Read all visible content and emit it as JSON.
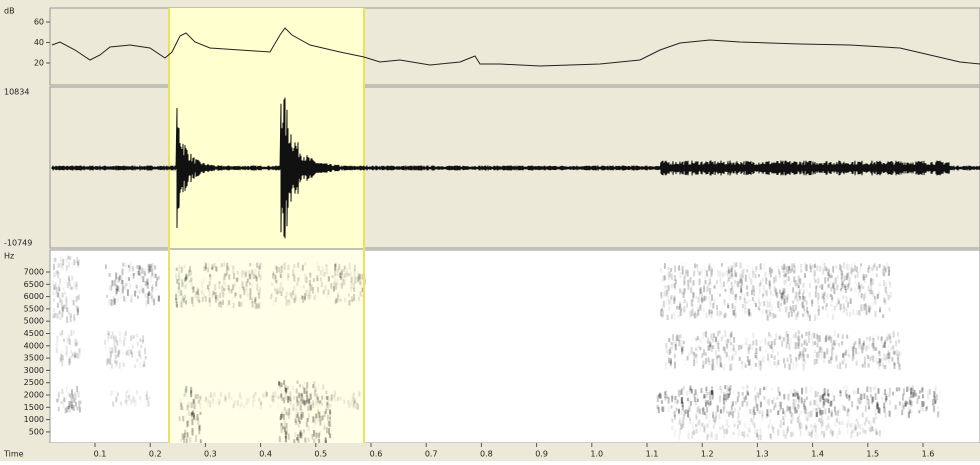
{
  "intensity_panel": {
    "unit": "dB",
    "ticks": [
      "60",
      "40",
      "20"
    ]
  },
  "waveform_panel": {
    "max": "10834",
    "min": "-10749"
  },
  "spectrogram_panel": {
    "unit": "Hz",
    "ticks": [
      "7000",
      "6500",
      "6000",
      "5500",
      "5000",
      "4500",
      "4000",
      "3500",
      "3000",
      "2500",
      "2000",
      "1500",
      "1000",
      "500"
    ]
  },
  "time_axis": {
    "label": "Time",
    "ticks": [
      "0.1",
      "0.2",
      "0.3",
      "0.4",
      "0.5",
      "0.6",
      "0.7",
      "0.8",
      "0.9",
      "1.0",
      "1.1",
      "1.2",
      "1.3",
      "1.4",
      "1.5",
      "1.6"
    ]
  }
}
